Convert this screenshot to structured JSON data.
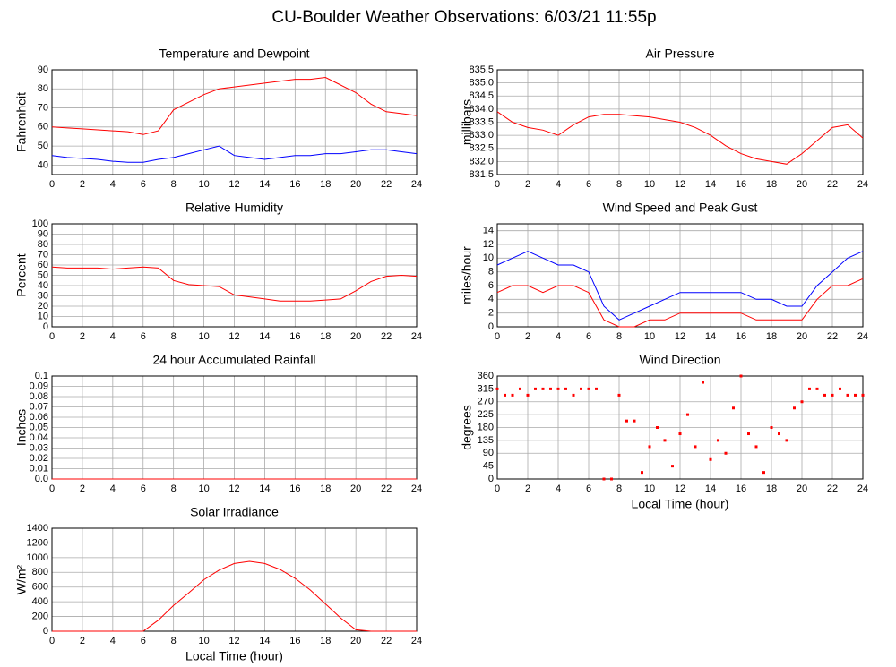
{
  "page_title": "CU-Boulder Weather Observations: 6/03/21 11:55p",
  "chart_data": [
    {
      "type": "line",
      "title": "Temperature and Dewpoint",
      "ylabel": "Fahrenheit",
      "grid": true,
      "xlim": [
        0,
        24
      ],
      "xticks": [
        0,
        2,
        4,
        6,
        8,
        10,
        12,
        14,
        16,
        18,
        20,
        22,
        24
      ],
      "ylim": [
        35,
        90
      ],
      "yticks": [
        40,
        50,
        60,
        70,
        80,
        90
      ],
      "x": [
        0,
        1,
        2,
        3,
        4,
        5,
        6,
        7,
        8,
        9,
        10,
        11,
        12,
        13,
        14,
        15,
        16,
        17,
        18,
        19,
        20,
        21,
        22,
        23,
        24
      ],
      "series": [
        {
          "color": "#ff0000",
          "values": [
            60,
            59.5,
            59,
            58.5,
            58,
            57.5,
            56,
            58,
            69,
            73,
            77,
            80,
            81,
            82,
            83,
            84,
            85,
            85,
            86,
            82,
            78,
            72,
            68,
            67,
            66
          ]
        },
        {
          "color": "#0000ff",
          "values": [
            45,
            44,
            43.5,
            43,
            42,
            41.5,
            41.5,
            43,
            44,
            46,
            48,
            50,
            45,
            44,
            43,
            44,
            45,
            45,
            46,
            46,
            47,
            48,
            48,
            47,
            46
          ]
        }
      ]
    },
    {
      "type": "line",
      "title": "Air Pressure",
      "ylabel": "millibars",
      "grid": true,
      "xlim": [
        0,
        24
      ],
      "xticks": [
        0,
        2,
        4,
        6,
        8,
        10,
        12,
        14,
        16,
        18,
        20,
        22,
        24
      ],
      "ylim": [
        831.5,
        835.5
      ],
      "yticks": [
        831.5,
        {
          "value": 832,
          "label": "832.0"
        },
        832.5,
        {
          "value": 833,
          "label": "833.0"
        },
        833.5,
        {
          "value": 834,
          "label": "834.0"
        },
        834.5,
        {
          "value": 835,
          "label": "835.0"
        },
        835.5
      ],
      "x": [
        0,
        1,
        2,
        3,
        4,
        5,
        6,
        7,
        8,
        9,
        10,
        11,
        12,
        13,
        14,
        15,
        16,
        17,
        18,
        19,
        20,
        21,
        22,
        23,
        24
      ],
      "series": [
        {
          "color": "#ff0000",
          "values": [
            833.9,
            833.5,
            833.3,
            833.2,
            833.0,
            833.4,
            833.7,
            833.8,
            833.8,
            833.75,
            833.7,
            833.6,
            833.5,
            833.3,
            833.0,
            832.6,
            832.3,
            832.1,
            832.0,
            831.9,
            832.3,
            832.8,
            833.3,
            833.4,
            832.9
          ]
        }
      ]
    },
    {
      "type": "line",
      "title": "Relative Humidity",
      "ylabel": "Percent",
      "grid": true,
      "xlim": [
        0,
        24
      ],
      "xticks": [
        0,
        2,
        4,
        6,
        8,
        10,
        12,
        14,
        16,
        18,
        20,
        22,
        24
      ],
      "ylim": [
        0,
        100
      ],
      "yticks": [
        0,
        10,
        20,
        30,
        40,
        50,
        60,
        70,
        80,
        90,
        100
      ],
      "x": [
        0,
        1,
        2,
        3,
        4,
        5,
        6,
        7,
        8,
        9,
        10,
        11,
        12,
        13,
        14,
        15,
        16,
        17,
        18,
        19,
        20,
        21,
        22,
        23,
        24
      ],
      "series": [
        {
          "color": "#ff0000",
          "values": [
            58,
            57,
            57,
            57,
            56,
            57,
            58,
            57,
            45,
            41,
            40,
            39,
            31,
            29,
            27,
            25,
            25,
            25,
            26,
            27,
            35,
            44,
            49,
            50,
            49
          ]
        }
      ]
    },
    {
      "type": "line",
      "title": "Wind Speed and Peak Gust",
      "ylabel": "miles/hour",
      "grid": true,
      "xlim": [
        0,
        24
      ],
      "xticks": [
        0,
        2,
        4,
        6,
        8,
        10,
        12,
        14,
        16,
        18,
        20,
        22,
        24
      ],
      "ylim": [
        0,
        15
      ],
      "yticks": [
        0,
        2,
        4,
        6,
        8,
        10,
        12,
        14
      ],
      "x": [
        0,
        1,
        2,
        3,
        4,
        5,
        6,
        7,
        8,
        9,
        10,
        11,
        12,
        13,
        14,
        15,
        16,
        17,
        18,
        19,
        20,
        21,
        22,
        23,
        24
      ],
      "series": [
        {
          "color": "#0000ff",
          "values": [
            9,
            10,
            11,
            10,
            9,
            9,
            8,
            3,
            1,
            2,
            3,
            4,
            5,
            5,
            5,
            5,
            5,
            4,
            4,
            3,
            3,
            6,
            8,
            10,
            11
          ]
        },
        {
          "color": "#ff0000",
          "values": [
            5,
            6,
            6,
            5,
            6,
            6,
            5,
            1,
            0,
            0,
            1,
            1,
            2,
            2,
            2,
            2,
            2,
            1,
            1,
            1,
            1,
            4,
            6,
            6,
            7
          ]
        }
      ]
    },
    {
      "type": "line",
      "title": "24 hour Accumulated Rainfall",
      "ylabel": "Inches",
      "grid": true,
      "xlim": [
        0,
        24
      ],
      "xticks": [
        0,
        2,
        4,
        6,
        8,
        10,
        12,
        14,
        16,
        18,
        20,
        22,
        24
      ],
      "ylim": [
        0,
        0.1
      ],
      "yticks": [
        {
          "value": 0,
          "label": "0.0"
        },
        0.01,
        0.02,
        0.03,
        0.04,
        0.05,
        0.06,
        0.07,
        0.08,
        0.09,
        0.1
      ],
      "x": [
        0,
        1,
        2,
        3,
        4,
        5,
        6,
        7,
        8,
        9,
        10,
        11,
        12,
        13,
        14,
        15,
        16,
        17,
        18,
        19,
        20,
        21,
        22,
        23,
        24
      ],
      "series": [
        {
          "color": "#ff0000",
          "values": [
            0,
            0,
            0,
            0,
            0,
            0,
            0,
            0,
            0,
            0,
            0,
            0,
            0,
            0,
            0,
            0,
            0,
            0,
            0,
            0,
            0,
            0,
            0,
            0,
            0
          ]
        }
      ]
    },
    {
      "type": "scatter",
      "title": "Wind Direction",
      "ylabel": "degrees",
      "xlabel": "Local Time (hour)",
      "grid": true,
      "xlim": [
        0,
        24
      ],
      "xticks": [
        0,
        2,
        4,
        6,
        8,
        10,
        12,
        14,
        16,
        18,
        20,
        22,
        24
      ],
      "ylim": [
        0,
        360
      ],
      "yticks": [
        0,
        45,
        90,
        135,
        180,
        225,
        270,
        315,
        360
      ],
      "x": [
        0,
        0.5,
        1,
        1.5,
        2,
        2.5,
        3,
        3.5,
        4,
        4.5,
        5,
        5.5,
        6,
        6.5,
        7,
        7.5,
        8,
        8.5,
        9,
        9.5,
        10,
        10.5,
        11,
        11.5,
        12,
        12.5,
        13,
        13.5,
        14,
        14.5,
        15,
        15.5,
        16,
        16.5,
        17,
        17.5,
        18,
        18.5,
        19,
        19.5,
        20,
        20.5,
        21,
        21.5,
        22,
        22.5,
        23,
        23.5,
        24
      ],
      "series": [
        {
          "color": "#ff0000",
          "values": [
            315,
            293,
            293,
            315,
            293,
            315,
            315,
            315,
            315,
            315,
            293,
            315,
            315,
            315,
            0,
            0,
            293,
            203,
            203,
            23,
            113,
            180,
            135,
            45,
            158,
            225,
            113,
            338,
            68,
            135,
            90,
            248,
            360,
            158,
            113,
            23,
            180,
            158,
            135,
            248,
            270,
            315,
            315,
            293,
            293,
            315,
            293,
            293,
            293
          ]
        }
      ]
    },
    {
      "type": "line",
      "title": "Solar Irradiance",
      "ylabel": "W/m²",
      "xlabel": "Local Time (hour)",
      "grid": true,
      "xlim": [
        0,
        24
      ],
      "xticks": [
        0,
        2,
        4,
        6,
        8,
        10,
        12,
        14,
        16,
        18,
        20,
        22,
        24
      ],
      "ylim": [
        0,
        1400
      ],
      "yticks": [
        0,
        200,
        400,
        600,
        800,
        1000,
        1200,
        1400
      ],
      "x": [
        0,
        1,
        2,
        3,
        4,
        5,
        6,
        7,
        8,
        9,
        10,
        11,
        12,
        13,
        14,
        15,
        16,
        17,
        18,
        19,
        20,
        21,
        22,
        23,
        24
      ],
      "series": [
        {
          "color": "#ff0000",
          "values": [
            0,
            0,
            0,
            0,
            0,
            0,
            0,
            150,
            350,
            520,
            700,
            830,
            920,
            950,
            920,
            840,
            720,
            560,
            370,
            180,
            20,
            0,
            0,
            0,
            0
          ]
        }
      ]
    }
  ]
}
